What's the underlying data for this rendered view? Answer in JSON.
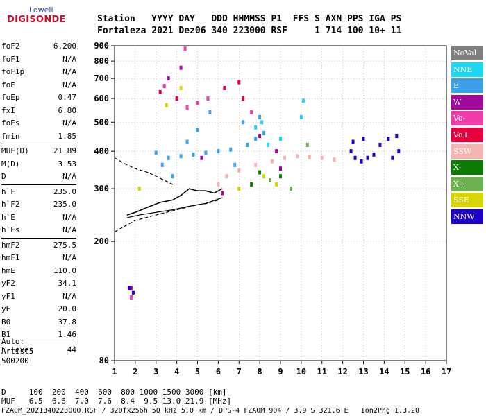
{
  "logo": {
    "top": "Lowell",
    "bottom": "DIGISONDE"
  },
  "header": {
    "labels": "Station   YYYY DAY   DDD HHMMSS P1  FFS S AXN PPS IGA PS",
    "values": "Fortaleza 2021 Dez06 340 223000 RSF     1 714 100 10+ 11"
  },
  "params": {
    "group1": [
      {
        "k": "foF2",
        "v": "6.200"
      },
      {
        "k": "foF1",
        "v": "N/A"
      },
      {
        "k": "foF1p",
        "v": "N/A"
      },
      {
        "k": "foE",
        "v": "N/A"
      },
      {
        "k": "foEp",
        "v": "0.47"
      },
      {
        "k": "fxI",
        "v": "6.80"
      },
      {
        "k": "foEs",
        "v": "N/A"
      },
      {
        "k": "fmin",
        "v": "1.85"
      }
    ],
    "group2": [
      {
        "k": "MUF(D)",
        "v": "21.89"
      },
      {
        "k": "M(D)",
        "v": "3.53"
      },
      {
        "k": "D",
        "v": "N/A"
      }
    ],
    "group3": [
      {
        "k": "h`F",
        "v": "235.0"
      },
      {
        "k": "h`F2",
        "v": "235.0"
      },
      {
        "k": "h`E",
        "v": "N/A"
      },
      {
        "k": "h`Es",
        "v": "N/A"
      }
    ],
    "group4": [
      {
        "k": "hmF2",
        "v": "275.5"
      },
      {
        "k": "hmF1",
        "v": "N/A"
      },
      {
        "k": "hmE",
        "v": "110.0"
      },
      {
        "k": "yF2",
        "v": "34.1"
      },
      {
        "k": "yF1",
        "v": "N/A"
      },
      {
        "k": "yE",
        "v": "20.0"
      },
      {
        "k": "B0",
        "v": "37.8"
      },
      {
        "k": "B1",
        "v": "1.46"
      }
    ],
    "group5": [
      {
        "k": "C-level",
        "v": "44"
      }
    ]
  },
  "auto": {
    "line1": "Auto:",
    "line2": "Artist5",
    "line3": "500200"
  },
  "legend": [
    {
      "label": "NoVal",
      "color": "#808080"
    },
    {
      "label": "NNE",
      "color": "#1ed6f0"
    },
    {
      "label": "E",
      "color": "#3ba0e8"
    },
    {
      "label": "W",
      "color": "#a0089c"
    },
    {
      "label": "Vo-",
      "color": "#f03ca8"
    },
    {
      "label": "Vo+",
      "color": "#e8003c"
    },
    {
      "label": "SSW",
      "color": "#f5b4b0"
    },
    {
      "label": "X-",
      "color": "#0a7a00"
    },
    {
      "label": "X+",
      "color": "#6cb050"
    },
    {
      "label": "SSE",
      "color": "#d8d400"
    },
    {
      "label": "NNW",
      "color": "#1c00c8"
    }
  ],
  "footer": {
    "d_row": "D     100  200  400  600  800 1000 1500 3000 [km]",
    "muf_row": "MUF   6.5  6.6  7.0  7.6  8.4  9.5 13.0 21.9 [MHz]",
    "file_row": "FZA0M_2021340223000.RSF / 320fx256h 50 kHz 5.0 km / DPS-4 FZA0M 904 / 3.9 S 321.6 E   Ion2Png 1.3.20"
  },
  "chart_data": {
    "type": "scatter",
    "title": "",
    "xlabel": "",
    "ylabel": "",
    "xlim": [
      1,
      17
    ],
    "ylim": [
      80,
      900
    ],
    "y_scale": "log",
    "x_ticks": [
      1,
      2,
      3,
      4,
      5,
      6,
      7,
      8,
      9,
      10,
      11,
      12,
      13,
      14,
      15,
      16,
      17
    ],
    "y_ticks": [
      80,
      200,
      300,
      400,
      500,
      600,
      700,
      800,
      900
    ],
    "grid": "dotted",
    "series": [
      {
        "name": "E",
        "points": [
          [
            3.0,
            395
          ],
          [
            3.6,
            380
          ],
          [
            4.2,
            385
          ],
          [
            4.8,
            390
          ],
          [
            5.4,
            395
          ],
          [
            6.0,
            400
          ],
          [
            6.6,
            405
          ],
          [
            7.4,
            420
          ],
          [
            7.8,
            440
          ],
          [
            8.2,
            460
          ],
          [
            3.3,
            360
          ],
          [
            4.5,
            430
          ],
          [
            5.0,
            470
          ],
          [
            5.6,
            540
          ],
          [
            7.2,
            500
          ],
          [
            8.0,
            520
          ],
          [
            3.8,
            330
          ],
          [
            6.8,
            360
          ]
        ]
      },
      {
        "name": "NNE",
        "points": [
          [
            7.8,
            480
          ],
          [
            8.1,
            500
          ],
          [
            9.0,
            440
          ],
          [
            10.1,
            590
          ],
          [
            10.0,
            520
          ],
          [
            8.4,
            420
          ]
        ]
      },
      {
        "name": "SSW",
        "points": [
          [
            6.4,
            330
          ],
          [
            7.0,
            345
          ],
          [
            7.8,
            360
          ],
          [
            8.6,
            370
          ],
          [
            9.2,
            380
          ],
          [
            9.8,
            385
          ],
          [
            10.4,
            382
          ],
          [
            11.0,
            380
          ],
          [
            11.6,
            375
          ],
          [
            6.0,
            310
          ]
        ]
      },
      {
        "name": "W",
        "points": [
          [
            3.6,
            700
          ],
          [
            4.2,
            760
          ],
          [
            8.0,
            450
          ],
          [
            8.8,
            400
          ],
          [
            9.0,
            350
          ],
          [
            5.2,
            380
          ],
          [
            6.2,
            290
          ],
          [
            1.8,
            140
          ]
        ]
      },
      {
        "name": "Vo-",
        "points": [
          [
            3.4,
            660
          ],
          [
            4.5,
            560
          ],
          [
            5.0,
            580
          ],
          [
            5.5,
            600
          ],
          [
            4.4,
            880
          ],
          [
            7.6,
            540
          ],
          [
            1.8,
            130
          ]
        ]
      },
      {
        "name": "Vo+",
        "points": [
          [
            3.2,
            630
          ],
          [
            4.0,
            600
          ],
          [
            6.3,
            650
          ],
          [
            7.0,
            680
          ],
          [
            7.2,
            600
          ]
        ]
      },
      {
        "name": "X-",
        "points": [
          [
            8.0,
            340
          ],
          [
            9.0,
            330
          ],
          [
            7.6,
            310
          ]
        ]
      },
      {
        "name": "X+",
        "points": [
          [
            8.5,
            320
          ],
          [
            9.5,
            300
          ],
          [
            10.3,
            420
          ]
        ]
      },
      {
        "name": "SSE",
        "points": [
          [
            3.5,
            570
          ],
          [
            4.2,
            650
          ],
          [
            8.2,
            330
          ],
          [
            8.8,
            310
          ],
          [
            7.0,
            300
          ],
          [
            2.2,
            300
          ]
        ]
      },
      {
        "name": "NNW",
        "points": [
          [
            12.4,
            400
          ],
          [
            12.6,
            380
          ],
          [
            12.9,
            370
          ],
          [
            13.2,
            380
          ],
          [
            13.5,
            390
          ],
          [
            13.8,
            420
          ],
          [
            14.2,
            440
          ],
          [
            14.6,
            450
          ],
          [
            12.5,
            430
          ],
          [
            13.0,
            440
          ],
          [
            14.4,
            380
          ],
          [
            14.7,
            400
          ],
          [
            1.7,
            140
          ],
          [
            1.9,
            135
          ]
        ]
      }
    ],
    "profile_line": {
      "x": [
        1.6,
        2.0,
        2.6,
        3.2,
        3.8,
        4.2,
        4.6,
        5.0,
        5.4,
        5.8,
        6.2
      ],
      "y": [
        245,
        250,
        260,
        270,
        275,
        285,
        300,
        295,
        295,
        290,
        300
      ]
    },
    "dashed_upper": {
      "x": [
        1.0,
        1.6,
        2.0,
        2.6,
        3.2,
        3.8
      ],
      "y": [
        380,
        360,
        350,
        340,
        325,
        310
      ]
    },
    "dashed_lower": {
      "x": [
        1.0,
        1.5,
        2.0,
        2.5,
        3.0,
        3.5,
        4.0,
        4.5,
        5.0,
        5.5,
        6.0
      ],
      "y": [
        215,
        225,
        235,
        240,
        245,
        250,
        255,
        260,
        265,
        268,
        275
      ]
    },
    "lower_envelope": {
      "x": [
        1.6,
        2.2,
        3.0,
        3.8,
        4.6,
        5.4,
        6.2
      ],
      "y": [
        240,
        245,
        250,
        255,
        262,
        268,
        280
      ]
    }
  }
}
